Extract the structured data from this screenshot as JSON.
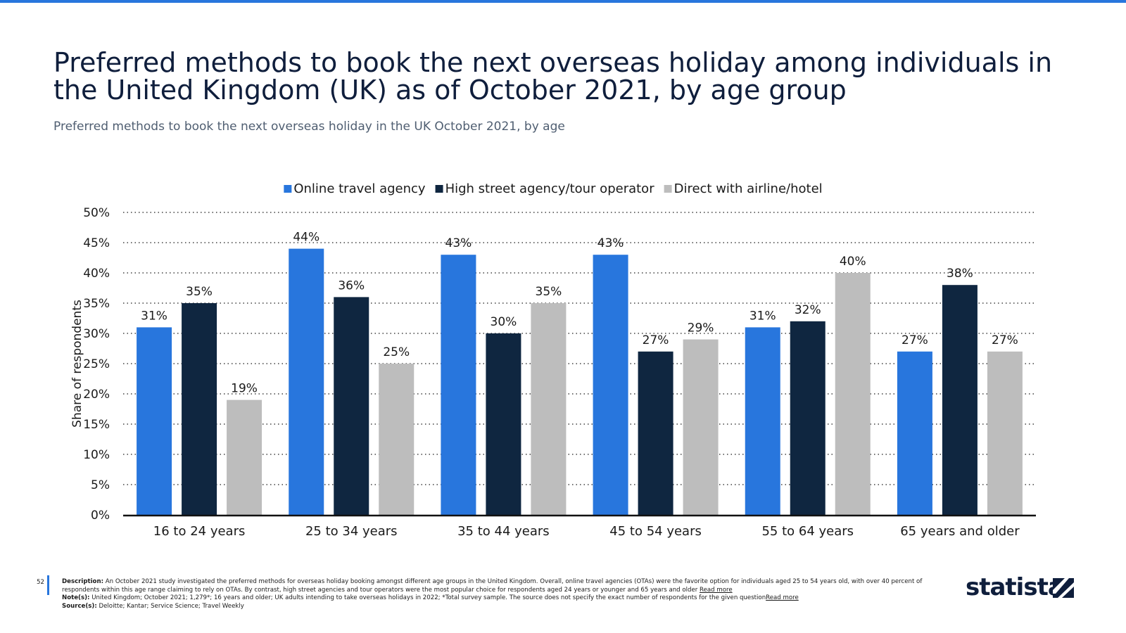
{
  "title": "Preferred methods to book the next overseas holiday among individuals in the United Kingdom (UK) as of October 2021, by age group",
  "subtitle": "Preferred methods to book the next overseas holiday in the UK October 2021, by age",
  "colors": {
    "accent": "#2876dd",
    "online": "#2876dd",
    "highstreet": "#0f2640",
    "direct": "#bdbdbd",
    "text": "#0f1e3c"
  },
  "chart_data": {
    "type": "bar",
    "categories": [
      "16 to 24 years",
      "25 to 34 years",
      "35 to 44 years",
      "45 to 54 years",
      "55 to 64 years",
      "65 years and older"
    ],
    "series": [
      {
        "name": "Online travel agency",
        "values": [
          31,
          44,
          43,
          43,
          31,
          27
        ]
      },
      {
        "name": "High street agency/tour operator",
        "values": [
          35,
          36,
          30,
          27,
          32,
          38
        ]
      },
      {
        "name": "Direct with airline/hotel",
        "values": [
          19,
          25,
          35,
          29,
          40,
          27
        ]
      }
    ],
    "ylabel": "Share of respondents",
    "xlabel": "",
    "ylim": [
      0,
      50
    ],
    "yticks": [
      0,
      5,
      10,
      15,
      20,
      25,
      30,
      35,
      40,
      45,
      50
    ],
    "value_suffix": "%",
    "grid": true,
    "legend": "top-center"
  },
  "footer": {
    "page_number": "52",
    "description_label": "Description:",
    "description": "An October 2021 study investigated the preferred methods for overseas holiday booking amongst different age groups in the United Kingdom. Overall, online travel agencies (OTAs) were the favorite option for individuals aged 25 to 54 years old, with over 40 percent of respondents within this age range claiming to rely on OTAs. By contrast, high street agencies and tour operators were the most popular choice for respondents aged 24 years or younger and 65 years and older",
    "read_more": "Read more",
    "notes_label": "Note(s):",
    "notes": "United Kingdom; October 2021; 1,279*; 16 years and older; UK adults intending to take overseas holidays in 2022; *Total survey sample. The source does not specify the exact number of respondents for the given question",
    "sources_label": "Source(s):",
    "sources": "Deloitte; Kantar; Service Science; Travel Weekly"
  },
  "logo": {
    "text": "statista"
  }
}
